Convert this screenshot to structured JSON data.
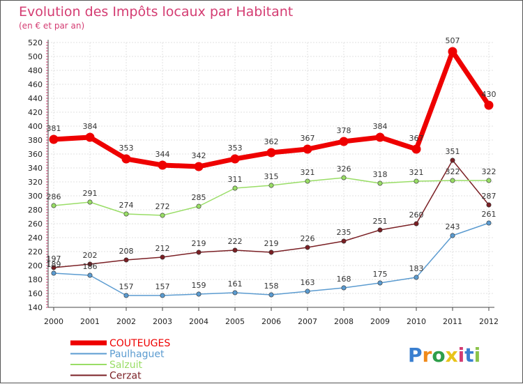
{
  "chart_data": {
    "type": "line",
    "title": "Evolution des Impôts locaux par Habitant",
    "subtitle": "(en € et par an)",
    "x": [
      "2000",
      "2001",
      "2002",
      "2003",
      "2004",
      "2005",
      "2006",
      "2007",
      "2008",
      "2009",
      "2010",
      "2011",
      "2012"
    ],
    "ylim": [
      140,
      520
    ],
    "yticks": [
      140,
      160,
      180,
      200,
      220,
      240,
      260,
      280,
      300,
      320,
      340,
      360,
      380,
      400,
      420,
      440,
      460,
      480,
      500,
      520
    ],
    "grid": true,
    "legend_position": "bottom-left",
    "series": [
      {
        "name": "COUTEUGES",
        "color": "#ee0000",
        "values": [
          381,
          384,
          353,
          344,
          342,
          353,
          362,
          367,
          378,
          384,
          367,
          507,
          430
        ]
      },
      {
        "name": "Paulhaguet",
        "color": "#5b9bd0",
        "values": [
          189,
          186,
          157,
          157,
          159,
          161,
          158,
          163,
          168,
          175,
          183,
          243,
          261
        ]
      },
      {
        "name": "Salzuit",
        "color": "#99dd66",
        "values": [
          286,
          291,
          274,
          272,
          285,
          311,
          315,
          321,
          326,
          318,
          321,
          322,
          322
        ]
      },
      {
        "name": "Cerzat",
        "color": "#7a1f24",
        "values": [
          197,
          202,
          208,
          212,
          219,
          222,
          219,
          226,
          235,
          251,
          260,
          351,
          287
        ]
      }
    ]
  },
  "logo": {
    "text": "Proxiti",
    "colors": [
      "#3a7fd0",
      "#f08a1a",
      "#2e9e4a",
      "#e8c41a",
      "#d43c72",
      "#3a7fd0",
      "#8bc34a"
    ]
  }
}
